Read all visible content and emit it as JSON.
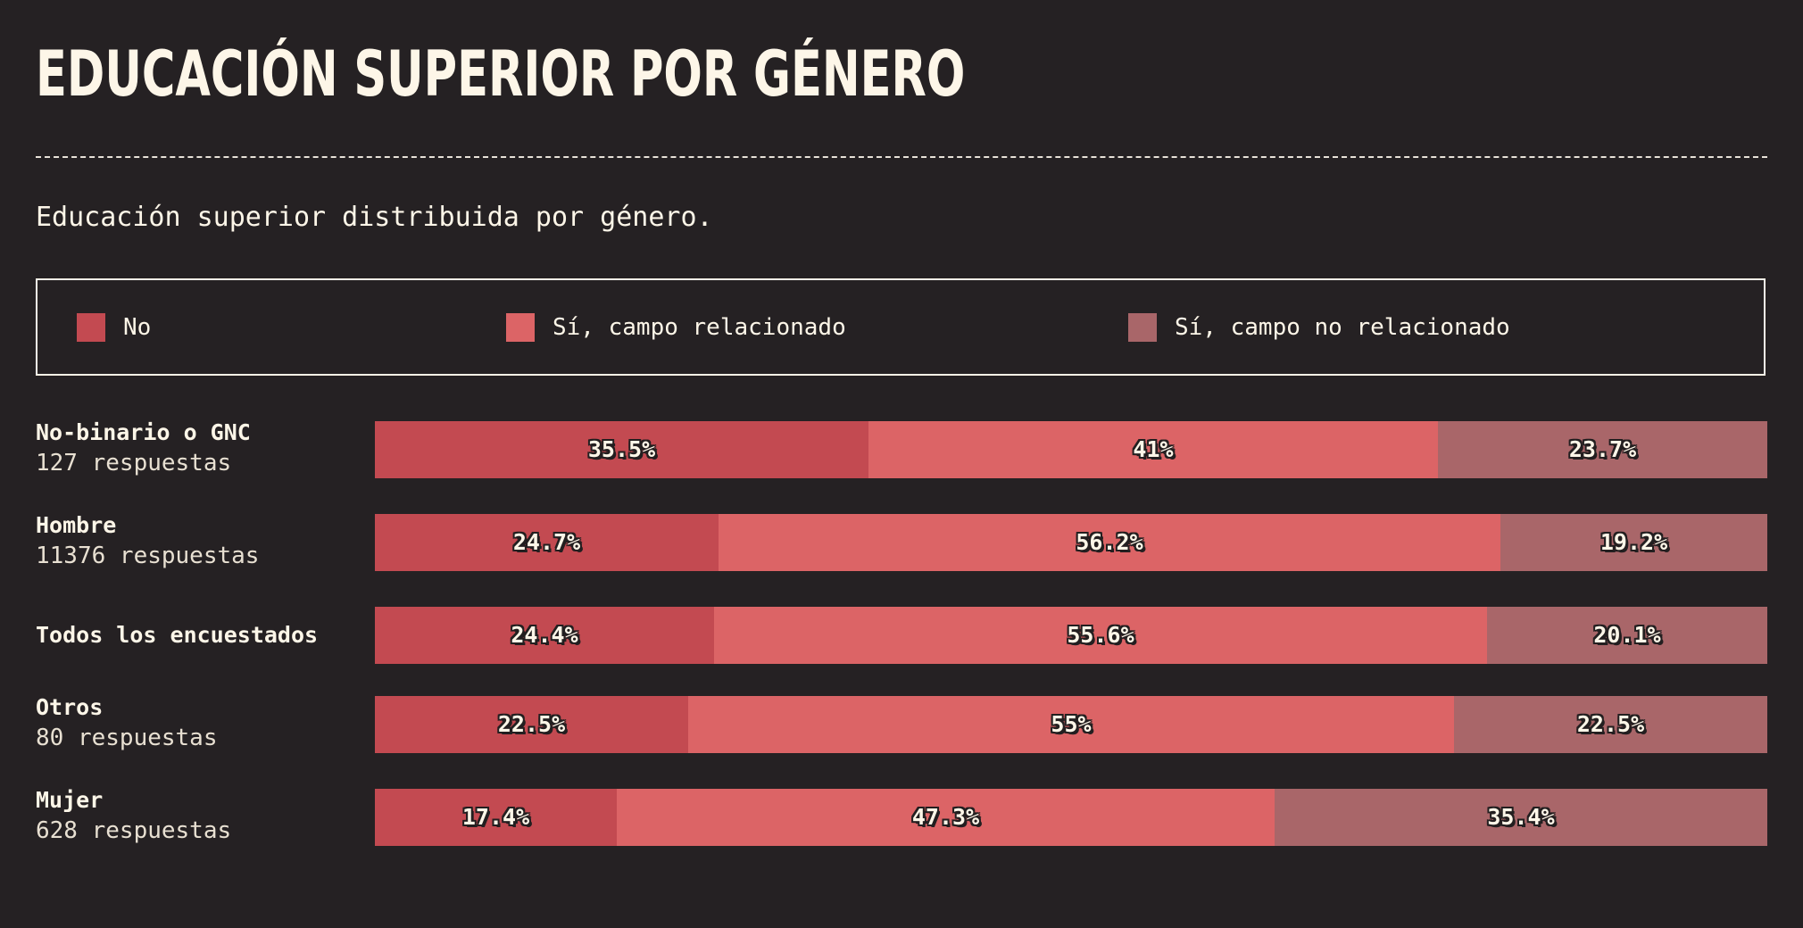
{
  "title": "EDUCACIÓN SUPERIOR POR GÉNERO",
  "subtitle": "Educación superior distribuida por género.",
  "colors": {
    "background": "#252123",
    "text": "#fdf6e8",
    "no": "#c34a51",
    "related": "#dc6466",
    "unrelated": "#a96669"
  },
  "legend": [
    {
      "label": "No",
      "color": "#c34a51"
    },
    {
      "label": "Sí, campo relacionado",
      "color": "#dc6466"
    },
    {
      "label": "Sí, campo no relacionado",
      "color": "#a96669"
    }
  ],
  "chart_data": {
    "type": "bar",
    "orientation": "horizontal",
    "stacked": true,
    "normalized": true,
    "title": "EDUCACIÓN SUPERIOR POR GÉNERO",
    "subtitle": "Educación superior distribuida por género.",
    "legend_position": "top",
    "grid": false,
    "categories": [
      "No-binario o GNC",
      "Hombre",
      "Todos los encuestados",
      "Otros",
      "Mujer"
    ],
    "counts": [
      "127 respuestas",
      "11376 respuestas",
      "",
      "80 respuestas",
      "628 respuestas"
    ],
    "series": [
      {
        "name": "No",
        "color": "#c34a51",
        "values": [
          35.5,
          24.7,
          24.4,
          22.5,
          17.4
        ],
        "labels": [
          "35.5%",
          "24.7%",
          "24.4%",
          "22.5%",
          "17.4%"
        ]
      },
      {
        "name": "Sí, campo relacionado",
        "color": "#dc6466",
        "values": [
          41,
          56.2,
          55.6,
          55,
          47.3
        ],
        "labels": [
          "41%",
          "56.2%",
          "55.6%",
          "55%",
          "47.3%"
        ]
      },
      {
        "name": "Sí, campo no relacionado",
        "color": "#a96669",
        "values": [
          23.7,
          19.2,
          20.1,
          22.5,
          35.4
        ],
        "labels": [
          "23.7%",
          "19.2%",
          "20.1%",
          "22.5%",
          "35.4%"
        ]
      }
    ]
  }
}
